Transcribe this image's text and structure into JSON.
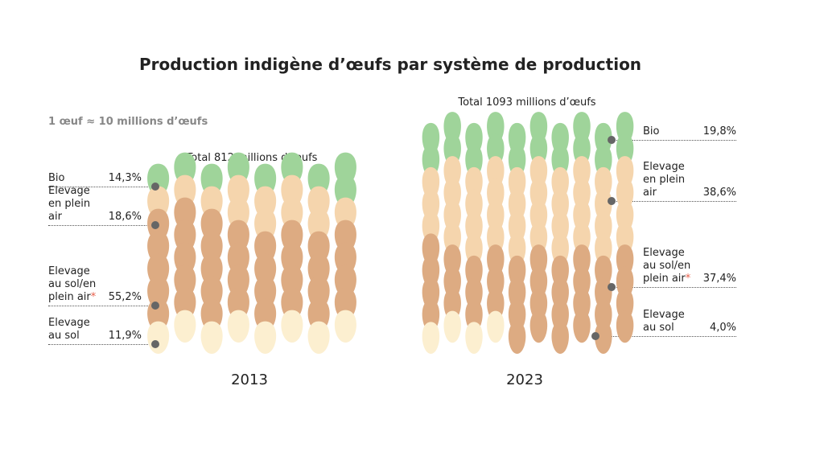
{
  "title": "Production indigène d’œufs par système de production",
  "note": "1 œuf ≈ 10 millions d’œufs",
  "chart_data": [
    {
      "type": "pictogram",
      "title": "2013",
      "subtitle": "Total 812 millions d’œufs",
      "categories": [
        "Bio",
        "Elevage en plein air",
        "Elevage au sol/en plein air",
        "Elevage au sol"
      ],
      "category_notes": [
        null,
        null,
        "*",
        null
      ],
      "values": [
        14.3,
        18.6,
        55.2,
        11.9
      ],
      "value_labels": [
        "14,3%",
        "18,6%",
        "55,2%",
        "11,9%"
      ],
      "colors": [
        "#9fd49a",
        "#f5d5ad",
        "#ddab82",
        "#fcefd0"
      ]
    },
    {
      "type": "pictogram",
      "title": "2023",
      "subtitle": "Total 1093 millions d’œufs",
      "categories": [
        "Bio",
        "Elevage en plein air",
        "Elevage au sol/en plein air",
        "Elevage au sol"
      ],
      "category_notes": [
        null,
        null,
        "*",
        null
      ],
      "values": [
        19.8,
        38.6,
        37.4,
        4.0
      ],
      "value_labels": [
        "19,8%",
        "38,6%",
        "37,4%",
        "4,0%"
      ],
      "colors": [
        "#9fd49a",
        "#f5d5ad",
        "#ddab82",
        "#fcefd0"
      ]
    }
  ]
}
